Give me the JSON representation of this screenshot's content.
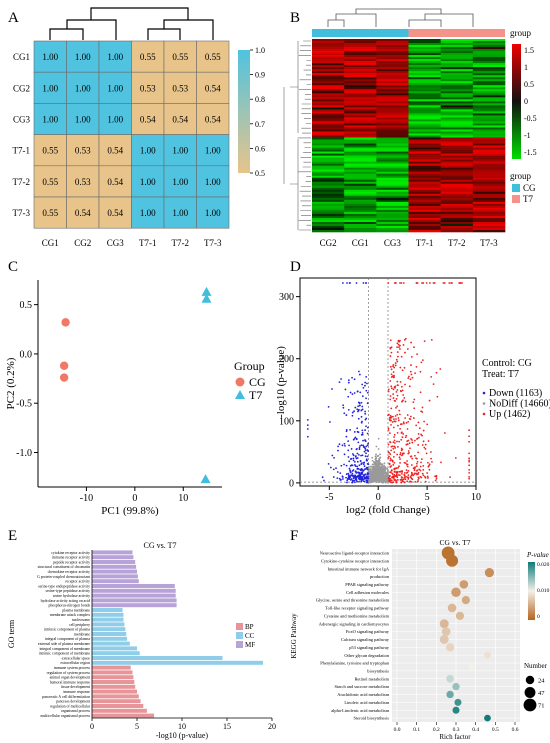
{
  "panel_labels": [
    "A",
    "B",
    "C",
    "D",
    "E",
    "F"
  ],
  "colors": {
    "cg": "#f07865",
    "t7": "#41bedc",
    "blue": "#4fc3e0",
    "tan": "#e8c48a",
    "heat_red": "#ee0000",
    "heat_green": "#00dd00"
  },
  "chart_data": [
    {
      "panel": "A",
      "type": "heatmap",
      "rows": [
        "CG1",
        "CG2",
        "CG3",
        "T7-1",
        "T7-2",
        "T7-3"
      ],
      "cols": [
        "CG1",
        "CG2",
        "CG3",
        "T7-1",
        "T7-2",
        "T7-3"
      ],
      "cells": [
        [
          "1.00",
          "1.00",
          "1.00",
          "0.55",
          "0.55",
          "0.55"
        ],
        [
          "1.00",
          "1.00",
          "1.00",
          "0.53",
          "0.53",
          "0.54"
        ],
        [
          "1.00",
          "1.00",
          "1.00",
          "0.54",
          "0.54",
          "0.54"
        ],
        [
          "0.55",
          "0.53",
          "0.54",
          "1.00",
          "1.00",
          "1.00"
        ],
        [
          "0.55",
          "0.53",
          "0.54",
          "1.00",
          "1.00",
          "1.00"
        ],
        [
          "0.55",
          "0.54",
          "0.54",
          "1.00",
          "1.00",
          "1.00"
        ]
      ],
      "colorbar_ticks": [
        "1.0",
        "0.9",
        "0.8",
        "0.7",
        "0.6",
        "0.5"
      ],
      "range": [
        0.5,
        1.0
      ]
    },
    {
      "panel": "B",
      "type": "heatmap",
      "cols": [
        "CG2",
        "CG1",
        "CG3",
        "T7-1",
        "T7-2",
        "T7-3"
      ],
      "colorbar_ticks": [
        "1.5",
        "1",
        "0.5",
        "0",
        "-0.5",
        "-1",
        "-1.5"
      ],
      "legend_title": "group",
      "legend_items": [
        "CG",
        "T7"
      ]
    },
    {
      "panel": "C",
      "type": "scatter",
      "xlabel": "PC1 (99.8%)",
      "ylabel": "PC2 (0.2%)",
      "xticks": [
        -10,
        0,
        10
      ],
      "yticks": [
        0.5,
        0.0,
        -0.5,
        -1.0
      ],
      "xlim": [
        -20,
        18
      ],
      "ylim": [
        -1.35,
        0.75
      ],
      "legend_title": "Group",
      "series": [
        {
          "name": "CG",
          "marker": "circle",
          "points": [
            [
              -14.3,
              0.32
            ],
            [
              -14.6,
              -0.12
            ],
            [
              -14.6,
              -0.24
            ]
          ]
        },
        {
          "name": "T7",
          "marker": "triangle",
          "points": [
            [
              14.8,
              0.63
            ],
            [
              14.8,
              0.56
            ],
            [
              14.6,
              -1.27
            ]
          ]
        }
      ]
    },
    {
      "panel": "D",
      "type": "scatter",
      "xlabel": "log2 (fold Change)",
      "ylabel": "-log10 (p-value)",
      "xticks": [
        -5,
        0,
        5,
        10
      ],
      "yticks": [
        0,
        100,
        200,
        300
      ],
      "xlim": [
        -8,
        10
      ],
      "ylim": [
        -5,
        330
      ],
      "info": [
        "Control: CG",
        "Treat: T7"
      ],
      "series": [
        {
          "name": "Down (1163)",
          "color": "#2222dd"
        },
        {
          "name": "NoDiff (14660)",
          "color": "#999999"
        },
        {
          "name": "Up (1462)",
          "color": "#ee2222"
        }
      ]
    },
    {
      "panel": "E",
      "type": "bar",
      "title": "CG vs. T7",
      "xlabel": "-log10 (p-value)",
      "ylabel": "GO term",
      "xticks": [
        0,
        5,
        10,
        15,
        20
      ],
      "xlim": [
        0,
        20
      ],
      "categories": [
        "cytokine receptor activity",
        "immune receptor activity",
        "peptide receptor activity",
        "structural constituent of chromatin",
        "chemokine receptor activity",
        "G protein-coupled chemoattractant",
        "receptor activity",
        "serine-type endopeptidase activity",
        "serine-type peptidase activity",
        "serine hydrolase activity",
        "hydrolase activity acting on acid",
        "phosphorus-nitrogen bonds",
        "plasma membrane",
        "membrane attack complex",
        "nucleosome",
        "cell periphery",
        "intrinsic component of plasma",
        "membrane",
        "integral component of plasma",
        "external side of plasma membrane",
        "integral component of membrane",
        "intrinsic component of membrane",
        "extracellular space",
        "extracellular region",
        "immune system process",
        "regulation of system process",
        "animal organ development",
        "humoral immune response",
        "tissue development",
        "immune response",
        "pancreatic A cell differentiation",
        "pancreas development",
        "regulation of multicellular",
        "organismal process",
        "multicellular organismal process"
      ],
      "groups": [
        "MF",
        "MF",
        "MF",
        "MF",
        "MF",
        "MF",
        "MF",
        "MF",
        "MF",
        "MF",
        "MF",
        "MF",
        "CC",
        "CC",
        "CC",
        "CC",
        "CC",
        "CC",
        "CC",
        "CC",
        "CC",
        "CC",
        "CC",
        "CC",
        "BP",
        "BP",
        "BP",
        "BP",
        "BP",
        "BP",
        "BP",
        "BP",
        "BP",
        "BP",
        "BP"
      ],
      "values": [
        4.5,
        4.6,
        4.8,
        4.9,
        5.0,
        5.1,
        5.2,
        9.2,
        9.3,
        9.3,
        9.4,
        9.4,
        3.4,
        3.5,
        3.5,
        3.6,
        3.7,
        3.8,
        3.9,
        4.2,
        5.0,
        5.3,
        14.5,
        19.0,
        4.3,
        4.5,
        4.6,
        4.7,
        4.8,
        5.0,
        5.2,
        5.4,
        5.7,
        6.1,
        6.9
      ],
      "legend_items": [
        "BP",
        "CC",
        "MF"
      ],
      "legend_colors": [
        "#e8959a",
        "#8fcde8",
        "#b8a3d9"
      ]
    },
    {
      "panel": "F",
      "type": "scatter",
      "title": "CG vs. T7",
      "xlabel": "Rich factor",
      "ylabel": "KEGG Pathway",
      "xticks": [
        "0.0",
        "0.1",
        "0.2",
        "0.3",
        "0.4",
        "0.5",
        "0.6"
      ],
      "xlim": [
        0,
        0.6
      ],
      "pathways": [
        "Neuroactive ligand-receptor interaction",
        "Cytokine-cytokine receptor interaction",
        "Intestinal immune network for IgA",
        "production",
        "PPAR signaling pathway",
        "Cell adhesion molecules",
        "Glycine, serine and threonine metabolism",
        "Toll-like receptor signaling pathway",
        "Cysteine and methionine metabolism",
        "Adrenergic signaling in cardiomyocytes",
        "FoxO signaling pathway",
        "Calcium signaling pathway",
        "p53 signaling pathway",
        "Other glycan degradation",
        "Phenylalanine, tyrosine and tryptophan",
        "biosynthesis",
        "Retinol metabolism",
        "Starch and sucrose metabolism",
        "Arachidonic acid metabolism",
        "Linoleic acid metabolism",
        "alpha-Linolenic acid metabolism",
        "Steroid biosynthesis"
      ],
      "points": [
        {
          "row": 0,
          "x": 0.26,
          "p": 0.001,
          "n": 71
        },
        {
          "row": 1,
          "x": 0.28,
          "p": 0.001,
          "n": 60
        },
        {
          "row": 2.5,
          "x": 0.47,
          "p": 0.003,
          "n": 30
        },
        {
          "row": 4,
          "x": 0.34,
          "p": 0.004,
          "n": 25
        },
        {
          "row": 5,
          "x": 0.3,
          "p": 0.004,
          "n": 32
        },
        {
          "row": 6,
          "x": 0.35,
          "p": 0.005,
          "n": 22
        },
        {
          "row": 7,
          "x": 0.28,
          "p": 0.006,
          "n": 25
        },
        {
          "row": 8,
          "x": 0.32,
          "p": 0.006,
          "n": 22
        },
        {
          "row": 9,
          "x": 0.24,
          "p": 0.006,
          "n": 28
        },
        {
          "row": 10,
          "x": 0.25,
          "p": 0.007,
          "n": 26
        },
        {
          "row": 11,
          "x": 0.24,
          "p": 0.007,
          "n": 28
        },
        {
          "row": 12,
          "x": 0.27,
          "p": 0.008,
          "n": 22
        },
        {
          "row": 13,
          "x": 0.46,
          "p": 0.009,
          "n": 14
        },
        {
          "row": 14.5,
          "x": 0.38,
          "p": 0.01,
          "n": 14
        },
        {
          "row": 16,
          "x": 0.27,
          "p": 0.012,
          "n": 18
        },
        {
          "row": 17,
          "x": 0.3,
          "p": 0.014,
          "n": 16
        },
        {
          "row": 18,
          "x": 0.27,
          "p": 0.016,
          "n": 16
        },
        {
          "row": 19,
          "x": 0.31,
          "p": 0.018,
          "n": 14
        },
        {
          "row": 20,
          "x": 0.3,
          "p": 0.019,
          "n": 14
        },
        {
          "row": 21,
          "x": 0.46,
          "p": 0.02,
          "n": 12
        }
      ],
      "pvalue_title": "P-value",
      "pvalue_ticks": [
        "0.020",
        "0.010",
        "0"
      ],
      "number_title": "Number",
      "number_ticks": [
        24,
        47,
        71
      ]
    }
  ]
}
